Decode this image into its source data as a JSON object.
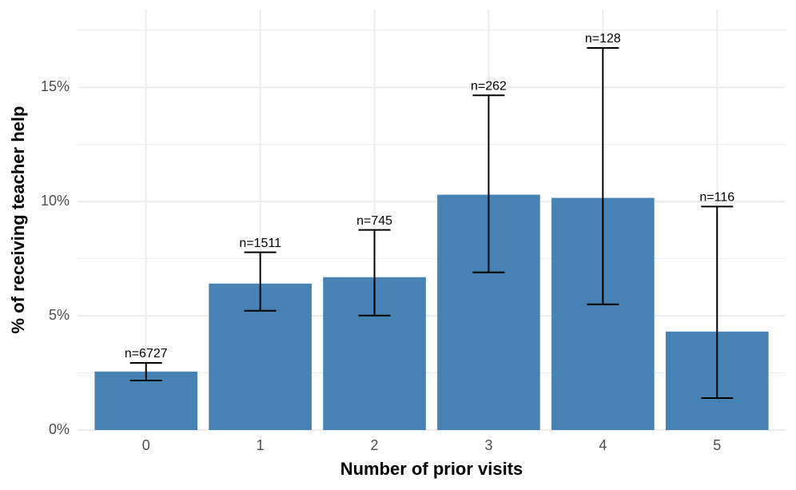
{
  "chart_data": {
    "type": "bar",
    "x_label": "Number of prior visits",
    "y_label": "% of receiving teacher help",
    "categories": [
      "0",
      "1",
      "2",
      "3",
      "4",
      "5"
    ],
    "values": [
      2.56,
      6.41,
      6.69,
      10.3,
      10.16,
      4.31
    ],
    "lower": [
      2.17,
      5.22,
      5.01,
      6.9,
      5.5,
      1.4
    ],
    "upper": [
      2.94,
      7.78,
      8.76,
      14.65,
      16.72,
      9.78
    ],
    "annotations": [
      "n=6727",
      "n=1511",
      "n=745",
      "n=262",
      "n=128",
      "n=116"
    ],
    "color": "#4682b4",
    "ylim": [
      0,
      18.4
    ],
    "yticks": [
      {
        "value": 0,
        "label": "0%"
      },
      {
        "value": 5,
        "label": "5%"
      },
      {
        "value": 10,
        "label": "10%"
      },
      {
        "value": 15,
        "label": "15%"
      }
    ],
    "minor_yticks": [
      2.5,
      7.5,
      12.5,
      17.5
    ],
    "grid": true
  }
}
